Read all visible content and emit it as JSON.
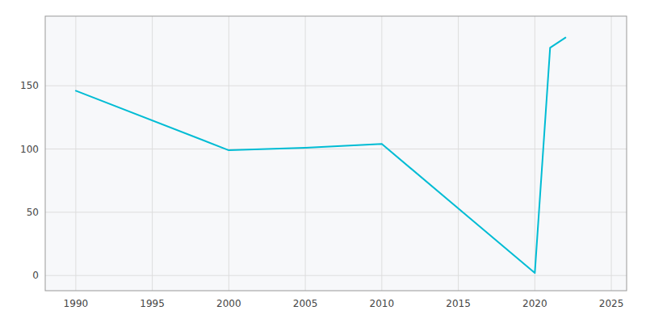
{
  "chart_data": {
    "type": "line",
    "x": [
      1990,
      2000,
      2005,
      2010,
      2020,
      2021,
      2022
    ],
    "values": [
      146,
      99,
      101,
      104,
      2,
      180,
      188
    ],
    "color": "#00BCD4",
    "xlim": [
      1988,
      2026
    ],
    "ylim": [
      -12,
      205
    ],
    "xticks": [
      1990,
      1995,
      2000,
      2005,
      2010,
      2015,
      2020,
      2025
    ],
    "yticks": [
      0,
      50,
      100,
      150
    ],
    "grid": true
  }
}
